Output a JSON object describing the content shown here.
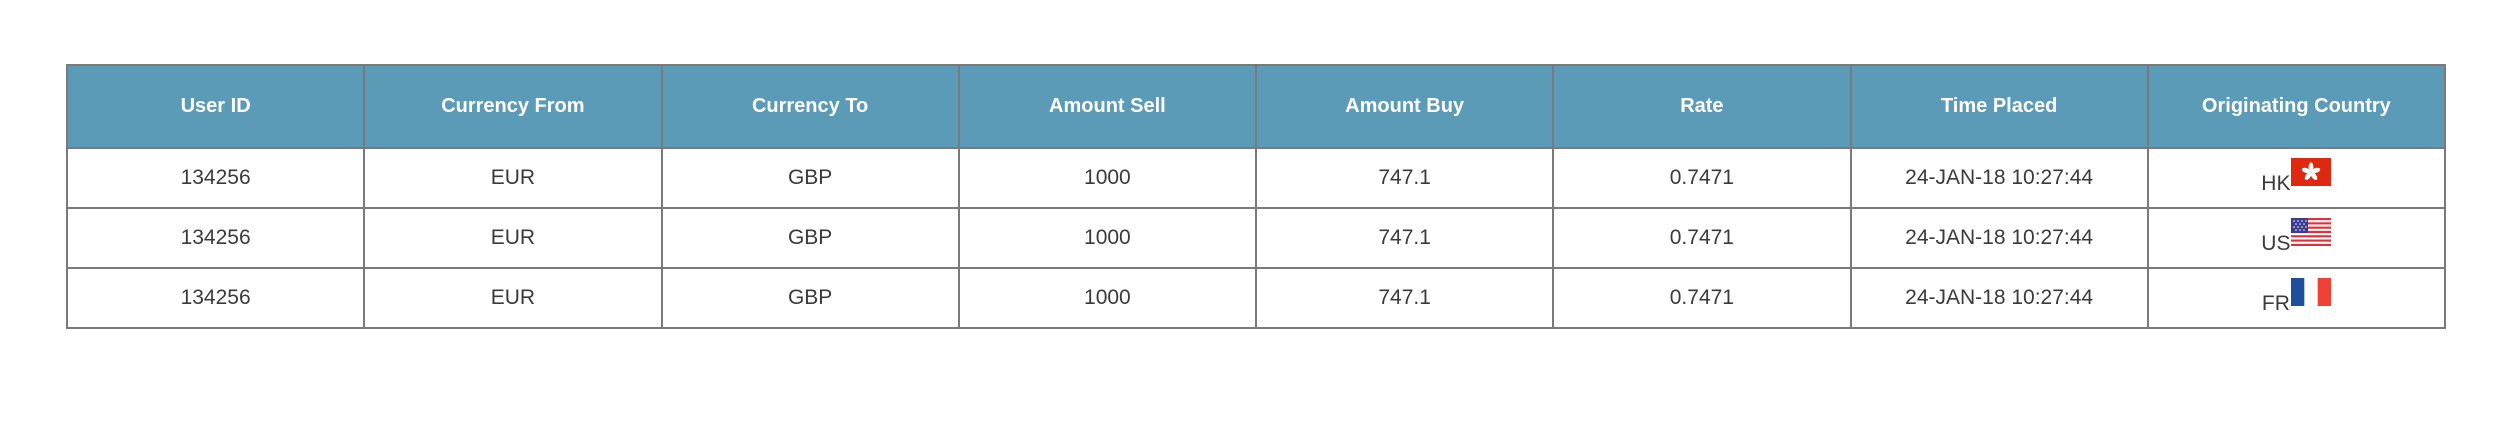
{
  "table": {
    "headers": [
      "User ID",
      "Currency From",
      "Currency To",
      "Amount Sell",
      "Amount Buy",
      "Rate",
      "Time Placed",
      "Originating Country"
    ],
    "rows": [
      {
        "user_id": "134256",
        "currency_from": "EUR",
        "currency_to": "GBP",
        "amount_sell": "1000",
        "amount_buy": "747.1",
        "rate": "0.7471",
        "time_placed": "24-JAN-18 10:27:44",
        "country": "HK",
        "flag_icon": "hong-kong-flag-icon"
      },
      {
        "user_id": "134256",
        "currency_from": "EUR",
        "currency_to": "GBP",
        "amount_sell": "1000",
        "amount_buy": "747.1",
        "rate": "0.7471",
        "time_placed": "24-JAN-18 10:27:44",
        "country": "US",
        "flag_icon": "us-flag-icon"
      },
      {
        "user_id": "134256",
        "currency_from": "EUR",
        "currency_to": "GBP",
        "amount_sell": "1000",
        "amount_buy": "747.1",
        "rate": "0.7471",
        "time_placed": "24-JAN-18 10:27:44",
        "country": "FR",
        "flag_icon": "france-flag-icon"
      }
    ]
  },
  "colors": {
    "header_bg": "#5b9bb8",
    "header_text": "#ffffff",
    "border": "#7a7a7a",
    "cell_text": "#3a3a3a"
  }
}
